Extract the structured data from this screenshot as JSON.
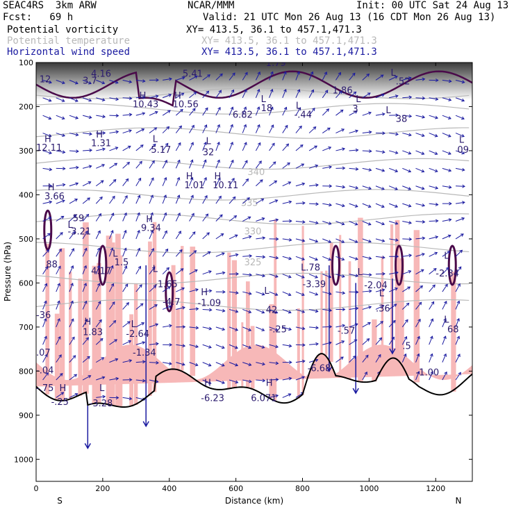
{
  "header": {
    "model": "SEAC4RS  3km ARW",
    "org": "NCAR/MMM",
    "init": "Init: 00 UTC Sat 24 Aug 13",
    "fcst": "Fcst:   69 h",
    "valid": "Valid: 21 UTC Mon 26 Aug 13 (16 CDT Mon 26 Aug 13)",
    "fields": [
      {
        "name": "Potential vorticity",
        "xy": "XY= 413.5, 36.1 to 457.1,471.3",
        "color": "#000000"
      },
      {
        "name": "Potential temperature",
        "xy": "XY= 413.5, 36.1 to 457.1,471.3",
        "color": "#b8b8b8"
      },
      {
        "name": "Horizontal wind speed",
        "xy": "XY= 413.5, 36.1 to 457.1,471.3",
        "color": "#1a1aa0"
      }
    ]
  },
  "colors": {
    "pv": "#4a0a4a",
    "theta": "#b8b8b8",
    "wind": "#1a1aa0",
    "shade": "#f7b8b8",
    "terrain": "#000000",
    "label": "#2a1a6e"
  },
  "chart_data": {
    "type": "cross-section",
    "xlabel": "Distance (km)",
    "ylabel": "Pressure (hPa)",
    "xlim": [
      0,
      1310
    ],
    "ylim": [
      1050,
      100
    ],
    "xticks": [
      0,
      200,
      400,
      600,
      800,
      1000,
      1200
    ],
    "yticks": [
      100,
      200,
      300,
      400,
      500,
      600,
      700,
      800,
      900,
      1000
    ],
    "x_end_labels": {
      "left": "S",
      "right": "N"
    },
    "theta_labels": [
      {
        "text": "340",
        "x": 635,
        "p": 355
      },
      {
        "text": "335",
        "x": 615,
        "p": 425
      },
      {
        "text": "330",
        "x": 625,
        "p": 490
      },
      {
        "text": "325",
        "x": 625,
        "p": 560
      }
    ],
    "extrema_labels": [
      {
        "t": "H",
        "x": 25,
        "p": 280
      },
      {
        "t": "12.11",
        "x": 0,
        "p": 300
      },
      {
        "t": "H",
        "x": 180,
        "p": 270
      },
      {
        "t": "1.31",
        "x": 165,
        "p": 290
      },
      {
        "t": "L",
        "x": 350,
        "p": 280
      },
      {
        "t": "5.17",
        "x": 345,
        "p": 305
      },
      {
        "t": "L",
        "x": 510,
        "p": 285
      },
      {
        "t": "32",
        "x": 500,
        "p": 310
      },
      {
        "t": "L",
        "x": 1270,
        "p": 282
      },
      {
        "t": "09",
        "x": 1265,
        "p": 305
      },
      {
        "t": "H",
        "x": 310,
        "p": 182
      },
      {
        "t": "10.43",
        "x": 290,
        "p": 202
      },
      {
        "t": "H",
        "x": 415,
        "p": 182
      },
      {
        "t": "10.56",
        "x": 410,
        "p": 202
      },
      {
        "t": "6.82",
        "x": 590,
        "p": 225
      },
      {
        "t": "L",
        "x": 675,
        "p": 190
      },
      {
        "t": "18",
        "x": 675,
        "p": 210
      },
      {
        "t": "L",
        "x": 780,
        "p": 205
      },
      {
        "t": "-.44",
        "x": 775,
        "p": 225
      },
      {
        "t": "L",
        "x": 960,
        "p": 190
      },
      {
        "t": "3",
        "x": 950,
        "p": 212
      },
      {
        "t": "L",
        "x": 1050,
        "p": 215
      },
      {
        "t": "38",
        "x": 1080,
        "p": 235
      },
      {
        "t": "5.41",
        "x": 440,
        "p": 132
      },
      {
        "t": "1.79",
        "x": 690,
        "p": 108
      },
      {
        "t": "4.16",
        "x": 165,
        "p": 132
      },
      {
        "t": "3.7",
        "x": 140,
        "p": 148
      },
      {
        "t": "12",
        "x": 10,
        "p": 145
      },
      {
        "t": "1.86",
        "x": 890,
        "p": 170
      },
      {
        "t": "L",
        "x": 1065,
        "p": 130
      },
      {
        "t": ".52",
        "x": 1080,
        "p": 150
      },
      {
        "t": "H",
        "x": 450,
        "p": 365
      },
      {
        "t": "1.01",
        "x": 445,
        "p": 385
      },
      {
        "t": "H",
        "x": 535,
        "p": 365
      },
      {
        "t": "10.11",
        "x": 530,
        "p": 385
      },
      {
        "t": "H",
        "x": 35,
        "p": 390
      },
      {
        "t": "3.66",
        "x": 25,
        "p": 410
      },
      {
        "t": "L",
        "x": 95,
        "p": 475
      },
      {
        "t": "59",
        "x": 110,
        "p": 460
      },
      {
        "t": "-3.21",
        "x": 95,
        "p": 490
      },
      {
        "t": "H",
        "x": 330,
        "p": 462
      },
      {
        "t": "9.34",
        "x": 315,
        "p": 482
      },
      {
        "t": "L",
        "x": 230,
        "p": 540
      },
      {
        "t": "1.5",
        "x": 235,
        "p": 560
      },
      {
        "t": "4.17",
        "x": 165,
        "p": 580
      },
      {
        "t": "88",
        "x": 30,
        "p": 565
      },
      {
        "t": "L",
        "x": 350,
        "p": 575
      },
      {
        "t": "-1.65",
        "x": 355,
        "p": 610
      },
      {
        "t": "H",
        "x": 495,
        "p": 628
      },
      {
        "t": "-1.09",
        "x": 485,
        "p": 652
      },
      {
        "t": "-4.7",
        "x": 380,
        "p": 650
      },
      {
        "t": "L",
        "x": 685,
        "p": 625
      },
      {
        "t": "42",
        "x": 690,
        "p": 668
      },
      {
        "t": "-.25",
        "x": 700,
        "p": 712
      },
      {
        "t": "L",
        "x": 795,
        "p": 572
      },
      {
        "t": ".78",
        "x": 810,
        "p": 572
      },
      {
        "t": "-3.39",
        "x": 800,
        "p": 610
      },
      {
        "t": "L",
        "x": 965,
        "p": 582
      },
      {
        "t": "-2.04",
        "x": 985,
        "p": 612
      },
      {
        "t": "L",
        "x": 1030,
        "p": 630
      },
      {
        "t": ".36",
        "x": 1020,
        "p": 665
      },
      {
        "t": "L",
        "x": 1225,
        "p": 545
      },
      {
        "t": "-2.84",
        "x": 1200,
        "p": 585
      },
      {
        "t": "L",
        "x": 1225,
        "p": 690
      },
      {
        "t": "68",
        "x": 1235,
        "p": 712
      },
      {
        "t": "-36",
        "x": 0,
        "p": 680
      },
      {
        "t": "H",
        "x": 145,
        "p": 695
      },
      {
        "t": "1.83",
        "x": 140,
        "p": 718
      },
      {
        "t": "L",
        "x": 285,
        "p": 700
      },
      {
        "t": "-2.64",
        "x": 270,
        "p": 722
      },
      {
        "t": "-1.34",
        "x": 290,
        "p": 765
      },
      {
        "t": ".07",
        "x": 0,
        "p": 765
      },
      {
        "t": "-.04",
        "x": 0,
        "p": 805
      },
      {
        "t": "-.57",
        "x": 905,
        "p": 715
      },
      {
        "t": "-6.68",
        "x": 815,
        "p": 800
      },
      {
        "t": "-1.00",
        "x": 1140,
        "p": 810
      },
      {
        "t": ".5",
        "x": 1100,
        "p": 750
      },
      {
        "t": "-.75",
        "x": 0,
        "p": 845
      },
      {
        "t": "H",
        "x": 70,
        "p": 845
      },
      {
        "t": "-.25",
        "x": 45,
        "p": 877
      },
      {
        "t": "L",
        "x": 190,
        "p": 845
      },
      {
        "t": "-3.28",
        "x": 160,
        "p": 880
      },
      {
        "t": "H",
        "x": 505,
        "p": 833
      },
      {
        "t": "-6.23",
        "x": 495,
        "p": 868
      },
      {
        "t": "H",
        "x": 690,
        "p": 833
      },
      {
        "t": "6.071",
        "x": 645,
        "p": 868
      }
    ]
  }
}
